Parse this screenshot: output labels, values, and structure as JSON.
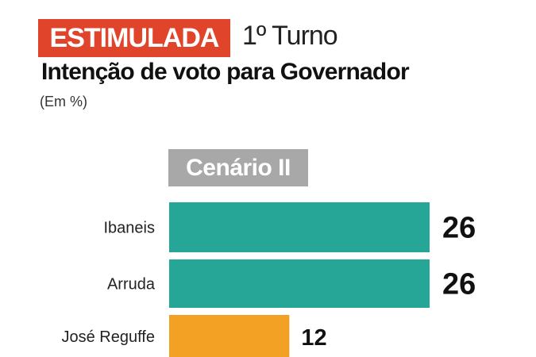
{
  "header": {
    "tag": "ESTIMULADA",
    "round": "1º Turno",
    "title": "Intenção de voto para Governador",
    "unit": "(Em %)",
    "scenario": "Cenário II"
  },
  "colors": {
    "tag": "#e0442a",
    "scenario": "#a8a8a8",
    "teal": "#26a697",
    "orange": "#f3a125"
  },
  "chart_data": {
    "type": "bar",
    "orientation": "horizontal",
    "title": "Intenção de voto para Governador",
    "subtitle": "(Em %)",
    "categories": [
      "Ibaneis",
      "Arruda",
      "José Reguffe"
    ],
    "values": [
      26,
      26,
      12
    ],
    "bar_colors": [
      "#26a697",
      "#26a697",
      "#f3a125"
    ],
    "data_labels": [
      "26",
      "26",
      "12"
    ],
    "grid": false
  }
}
